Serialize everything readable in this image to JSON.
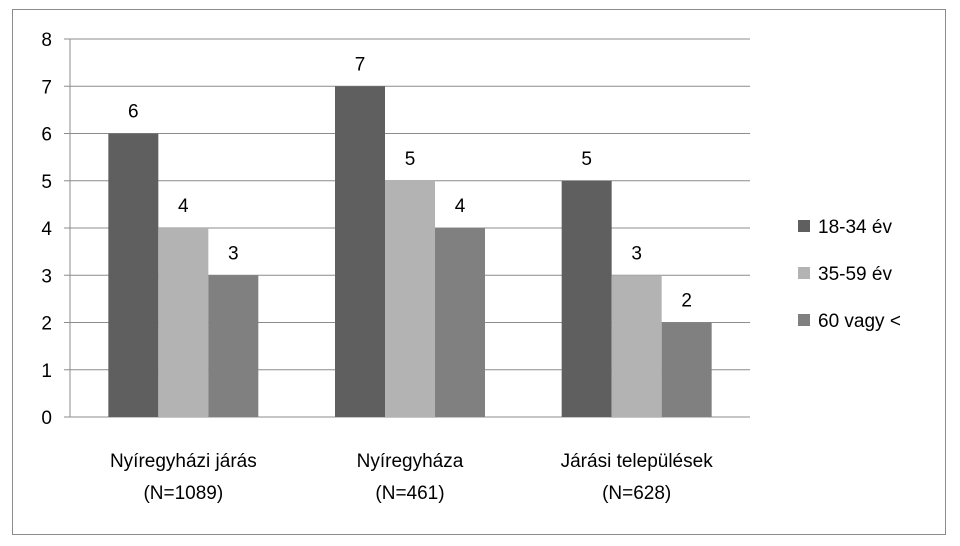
{
  "chart_data": {
    "type": "bar",
    "title": "",
    "xlabel": "",
    "ylabel": "",
    "ylim": [
      0,
      8
    ],
    "yticks": [
      0,
      1,
      2,
      3,
      4,
      5,
      6,
      7,
      8
    ],
    "grid": true,
    "legend_position": "right",
    "categories": [
      [
        "Nyíregyházi járás",
        "(N=1089)"
      ],
      [
        "Nyíregyháza",
        "(N=461)"
      ],
      [
        "Járási települések",
        "(N=628)"
      ]
    ],
    "series": [
      {
        "name": "18-34 év",
        "color": "#5f5f5f",
        "values": [
          6,
          7,
          5
        ]
      },
      {
        "name": "35-59 év",
        "color": "#b3b3b3",
        "values": [
          4,
          5,
          3
        ]
      },
      {
        "name": "60 vagy <",
        "color": "#808080",
        "values": [
          3,
          4,
          2
        ]
      }
    ]
  }
}
